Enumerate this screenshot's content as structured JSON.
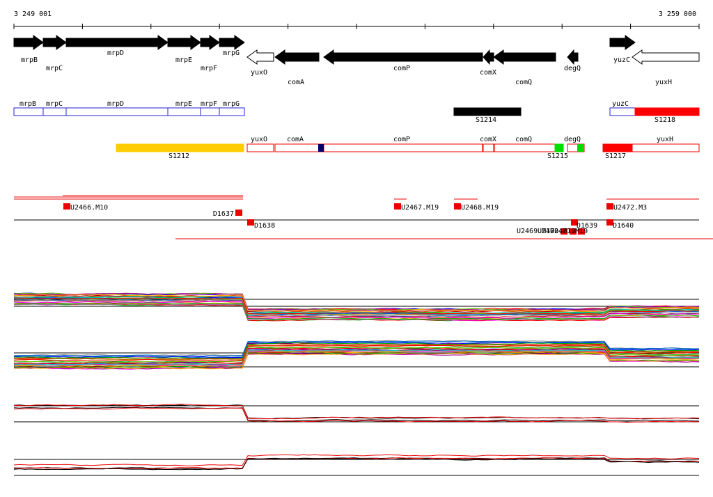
{
  "axis": {
    "start": "3 249 001",
    "end": "3 259 000"
  },
  "genes": [
    "mrpB",
    "mrpC",
    "mrpD",
    "mrpE",
    "mrpF",
    "mrpG",
    "yuxO",
    "comA",
    "comP",
    "comX",
    "comQ",
    "degQ",
    "yuzC",
    "yuxH"
  ],
  "track_a": [
    "mrpB",
    "mrpC",
    "mrpD",
    "mrpE",
    "mrpF",
    "mrpG",
    "S1214",
    "yuzC",
    "S1218"
  ],
  "track_b": [
    "S1212",
    "yuxO",
    "comA",
    "comP",
    "comX",
    "comQ",
    "S1215",
    "degQ",
    "S1217",
    "yuxH"
  ],
  "transcripts": [
    "U2466.M10",
    "D1637",
    "D1638",
    "U2467.M19",
    "U2468.M19",
    "U2469.M19",
    "U2470.M19",
    "U2471.M19",
    "D1639",
    "U2472.M3",
    "D1640"
  ]
}
